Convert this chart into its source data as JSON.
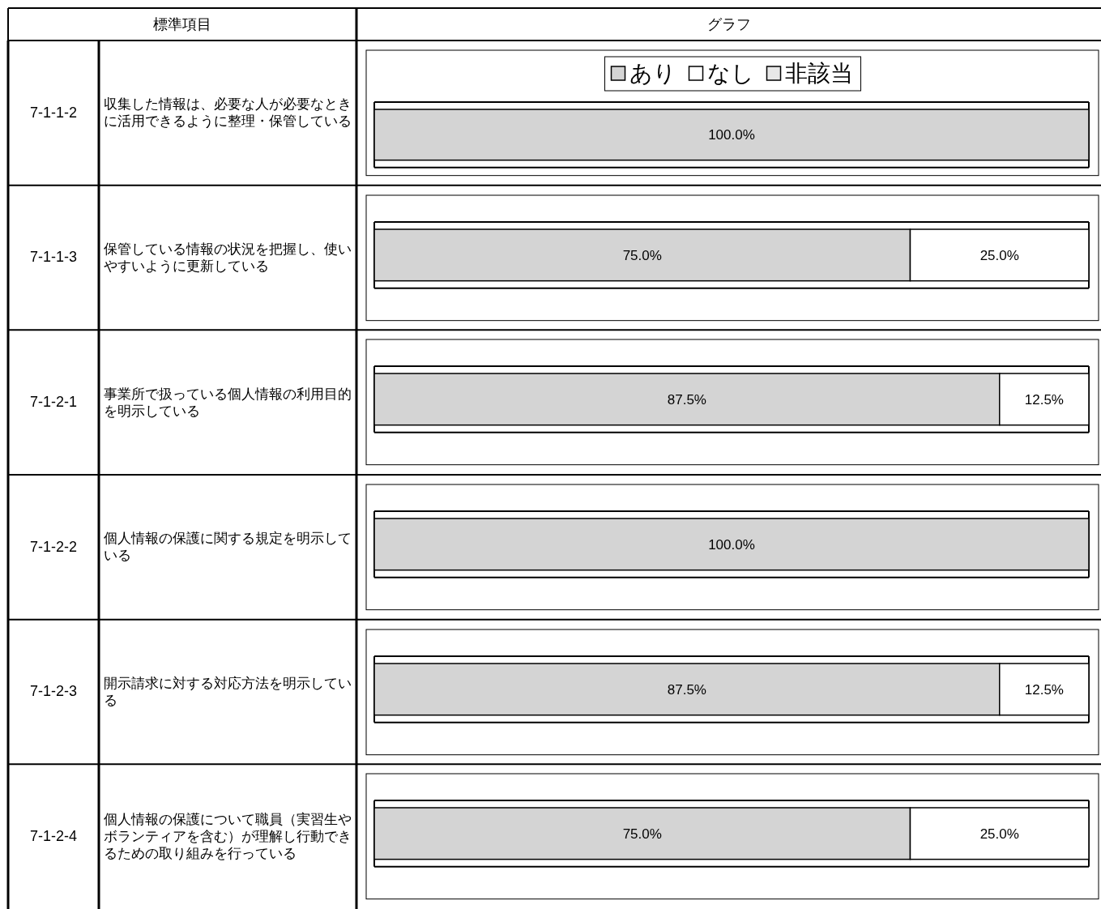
{
  "chart_data": [
    {
      "type": "bar",
      "orientation": "horizontal",
      "stacked": true,
      "legend": "top",
      "categories": [
        "収集した情報は、必要な人が必要なときに活用できるように整理・保管している"
      ],
      "annotations": [
        "標準項目",
        "グラフ",
        "7-1-1-2"
      ],
      "series": [
        {
          "name": "あり",
          "color": "#d4d4d4",
          "values": [
            100
          ],
          "value_labels": [
            "100.0%"
          ]
        },
        {
          "name": "なし",
          "color": "#ffffff",
          "values": [
            0
          ],
          "value_labels": [
            null
          ]
        },
        {
          "name": "非該当",
          "color": "#e8e8e8",
          "values": [
            0
          ],
          "value_labels": [
            null
          ]
        }
      ]
    },
    {
      "type": "bar",
      "orientation": "horizontal",
      "stacked": true,
      "categories": [
        "保管している情報の状況を把握し、使いやすいように更新している"
      ],
      "annotations": [
        "7-1-1-3"
      ],
      "series": [
        {
          "color": "#d4d4d4",
          "values": [
            75
          ],
          "value_labels": [
            "75.0%"
          ]
        },
        {
          "color": "#ffffff",
          "values": [
            25
          ],
          "value_labels": [
            "25.0%"
          ]
        },
        {
          "values": [
            0
          ],
          "value_labels": [
            null
          ]
        }
      ]
    },
    {
      "type": "bar",
      "orientation": "horizontal",
      "stacked": true,
      "categories": [
        "事業所で扱っている個人情報の利用目的を明示している"
      ],
      "annotations": [
        "7-1-2-1"
      ],
      "series": [
        {
          "color": "#d4d4d4",
          "values": [
            87.5
          ],
          "value_labels": [
            "87.5%"
          ]
        },
        {
          "color": "#ffffff",
          "values": [
            12.5
          ],
          "value_labels": [
            "12.5%"
          ]
        },
        {
          "values": [
            0
          ],
          "value_labels": [
            null
          ]
        }
      ]
    },
    {
      "type": "bar",
      "orientation": "horizontal",
      "stacked": true,
      "categories": [
        "個人情報の保護に関する規定を明示している"
      ],
      "annotations": [
        "7-1-2-2"
      ],
      "series": [
        {
          "color": "#d4d4d4",
          "values": [
            100
          ],
          "value_labels": [
            "100.0%"
          ]
        },
        {
          "values": [
            0
          ],
          "value_labels": [
            null
          ]
        },
        {
          "values": [
            0
          ],
          "value_labels": [
            null
          ]
        }
      ]
    },
    {
      "type": "bar",
      "orientation": "horizontal",
      "stacked": true,
      "categories": [
        "開示請求に対する対応方法を明示している"
      ],
      "annotations": [
        "7-1-2-3"
      ],
      "series": [
        {
          "color": "#d4d4d4",
          "values": [
            87.5
          ],
          "value_labels": [
            "87.5%"
          ]
        },
        {
          "color": "#ffffff",
          "values": [
            12.5
          ],
          "value_labels": [
            "12.5%"
          ]
        },
        {
          "values": [
            0
          ],
          "value_labels": [
            null
          ]
        }
      ]
    },
    {
      "type": "bar",
      "orientation": "horizontal",
      "stacked": true,
      "categories": [
        "個人情報の保護について職員（実習生やボランティアを含む）が理解し行動できるための取り組みを行っている"
      ],
      "annotations": [
        "7-1-2-4"
      ],
      "series": [
        {
          "color": "#d4d4d4",
          "values": [
            75
          ],
          "value_labels": [
            "75.0%"
          ]
        },
        {
          "color": "#ffffff",
          "values": [
            25
          ],
          "value_labels": [
            "25.0%"
          ]
        },
        {
          "values": [
            0
          ],
          "value_labels": [
            null
          ]
        }
      ]
    }
  ]
}
